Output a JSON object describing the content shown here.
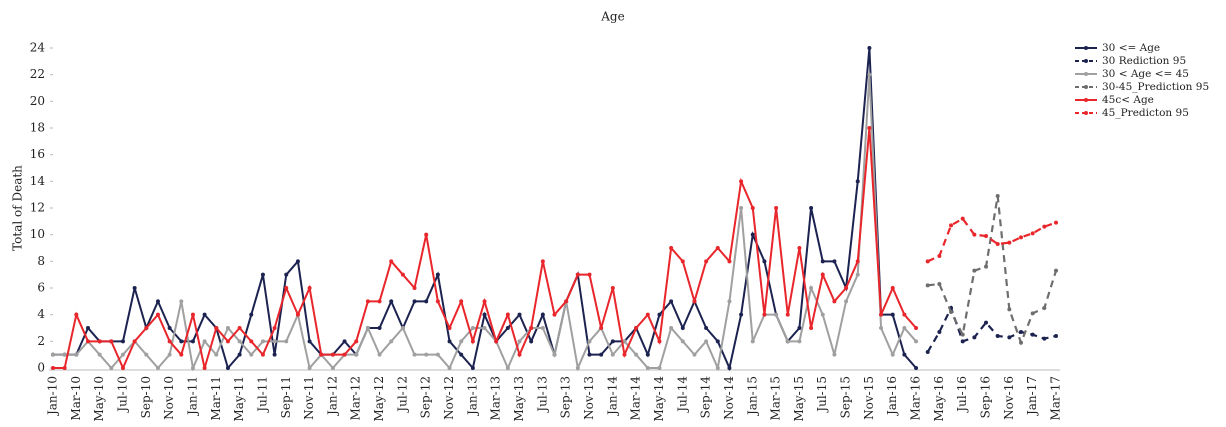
{
  "chart_data": {
    "type": "line",
    "title": "Age",
    "y_label": "Total of Death",
    "categories": [
      "Jan-10",
      null,
      "Mar-10",
      null,
      "May-10",
      null,
      "Jul-10",
      null,
      "Sep-10",
      null,
      "Nov-10",
      null,
      "Jan-11",
      null,
      "Mar-11",
      null,
      "May-11",
      null,
      "Jul-11",
      null,
      "Sep-11",
      null,
      "Nov-11",
      null,
      "Jan-12",
      null,
      "Mar-12",
      null,
      "May-12",
      null,
      "Jul-12",
      null,
      "Sep-12",
      null,
      "Nov-12",
      null,
      "Jan-13",
      null,
      "Mar-13",
      null,
      "May-13",
      null,
      "Jul-13",
      null,
      "Sep-13",
      null,
      "Nov-13",
      null,
      "Jan-14",
      null,
      "Mar-14",
      null,
      "May-14",
      null,
      "Jul-14",
      null,
      "Sep-14",
      null,
      "Nov-14",
      null,
      "Jan-15",
      null,
      "Mar-15",
      null,
      "May-15",
      null,
      "Jul-15",
      null,
      "Sep-15",
      null,
      "Nov-15",
      null,
      "Jan-16",
      null,
      "Mar-16",
      null,
      "May-16",
      null,
      "Jul-16",
      null,
      "Sep-16",
      null,
      "Nov-16",
      null,
      "Jan-17",
      null,
      "Mar-17"
    ],
    "ylim": [
      0,
      24
    ],
    "yticks": [
      0,
      2,
      4,
      6,
      8,
      10,
      12,
      14,
      16,
      18,
      20,
      22,
      24
    ],
    "grid": false,
    "legend": "right",
    "series": [
      {
        "name": "30 <= Age",
        "color": "#1c2350",
        "dashed": false,
        "values": [
          1,
          1,
          1,
          3,
          2,
          2,
          2,
          6,
          3,
          5,
          3,
          2,
          2,
          4,
          3,
          0,
          1,
          4,
          7,
          1,
          7,
          8,
          2,
          1,
          1,
          2,
          1,
          3,
          3,
          5,
          3,
          5,
          5,
          7,
          2,
          1,
          0,
          4,
          2,
          3,
          4,
          2,
          4,
          1,
          5,
          7,
          1,
          1,
          2,
          2,
          3,
          1,
          4,
          5,
          3,
          5,
          3,
          2,
          0,
          4,
          10,
          8,
          4,
          2,
          3,
          12,
          8,
          8,
          6,
          14,
          24,
          4,
          4,
          1,
          0,
          null,
          null,
          null,
          null,
          null,
          null,
          null,
          null,
          null,
          null,
          null,
          null
        ]
      },
      {
        "name": "30 Rediction 95",
        "color": "#1c2350",
        "dashed": true,
        "values": [
          null,
          null,
          null,
          null,
          null,
          null,
          null,
          null,
          null,
          null,
          null,
          null,
          null,
          null,
          null,
          null,
          null,
          null,
          null,
          null,
          null,
          null,
          null,
          null,
          null,
          null,
          null,
          null,
          null,
          null,
          null,
          null,
          null,
          null,
          null,
          null,
          null,
          null,
          null,
          null,
          null,
          null,
          null,
          null,
          null,
          null,
          null,
          null,
          null,
          null,
          null,
          null,
          null,
          null,
          null,
          null,
          null,
          null,
          null,
          null,
          null,
          null,
          null,
          null,
          null,
          null,
          null,
          null,
          null,
          null,
          null,
          null,
          null,
          null,
          null,
          1.2,
          2.7,
          4.5,
          2.0,
          2.3,
          3.4,
          2.4,
          2.3,
          2.7,
          2.5,
          2.2,
          2.4
        ]
      },
      {
        "name": "30 < Age <= 45",
        "color": "#a0a0a0",
        "dashed": false,
        "values": [
          1,
          1,
          1,
          2,
          1,
          0,
          1,
          2,
          1,
          0,
          1,
          5,
          0,
          2,
          1,
          3,
          2,
          1,
          2,
          2,
          2,
          4,
          0,
          1,
          0,
          1,
          1,
          3,
          1,
          2,
          3,
          1,
          1,
          1,
          0,
          2,
          3,
          3,
          2,
          0,
          2,
          3,
          3,
          1,
          5,
          0,
          2,
          3,
          1,
          2,
          1,
          0,
          0,
          3,
          2,
          1,
          2,
          0,
          5,
          12,
          2,
          4,
          4,
          2,
          2,
          6,
          4,
          1,
          5,
          7,
          22,
          3,
          1,
          3,
          2,
          null,
          null,
          null,
          null,
          null,
          null,
          null,
          null,
          null,
          null,
          null,
          null
        ]
      },
      {
        "name": "30-45_Prediction 95",
        "color": "#6e6e6e",
        "dashed": true,
        "values": [
          null,
          null,
          null,
          null,
          null,
          null,
          null,
          null,
          null,
          null,
          null,
          null,
          null,
          null,
          null,
          null,
          null,
          null,
          null,
          null,
          null,
          null,
          null,
          null,
          null,
          null,
          null,
          null,
          null,
          null,
          null,
          null,
          null,
          null,
          null,
          null,
          null,
          null,
          null,
          null,
          null,
          null,
          null,
          null,
          null,
          null,
          null,
          null,
          null,
          null,
          null,
          null,
          null,
          null,
          null,
          null,
          null,
          null,
          null,
          null,
          null,
          null,
          null,
          null,
          null,
          null,
          null,
          null,
          null,
          null,
          null,
          null,
          null,
          null,
          null,
          6.2,
          6.3,
          4.2,
          2.5,
          7.3,
          7.6,
          12.9,
          4.4,
          1.9,
          4.1,
          4.5,
          7.3
        ]
      },
      {
        "name": "45c< Age",
        "color": "#e8262b",
        "dashed": false,
        "values": [
          0,
          0,
          4,
          2,
          2,
          2,
          0,
          2,
          3,
          4,
          2,
          1,
          4,
          0,
          3,
          2,
          3,
          2,
          1,
          3,
          6,
          4,
          6,
          1,
          1,
          1,
          2,
          5,
          5,
          8,
          7,
          6,
          10,
          5,
          3,
          5,
          2,
          5,
          2,
          4,
          1,
          3,
          8,
          4,
          5,
          7,
          7,
          3,
          6,
          1,
          3,
          4,
          2,
          9,
          8,
          5,
          8,
          9,
          8,
          14,
          12,
          4,
          12,
          4,
          9,
          3,
          7,
          5,
          6,
          8,
          18,
          4,
          6,
          4,
          3,
          null,
          null,
          null,
          null,
          null,
          null,
          null,
          null,
          null,
          null,
          null,
          null
        ]
      },
      {
        "name": "45_Predicton 95",
        "color": "#e8262b",
        "dashed": true,
        "values": [
          null,
          null,
          null,
          null,
          null,
          null,
          null,
          null,
          null,
          null,
          null,
          null,
          null,
          null,
          null,
          null,
          null,
          null,
          null,
          null,
          null,
          null,
          null,
          null,
          null,
          null,
          null,
          null,
          null,
          null,
          null,
          null,
          null,
          null,
          null,
          null,
          null,
          null,
          null,
          null,
          null,
          null,
          null,
          null,
          null,
          null,
          null,
          null,
          null,
          null,
          null,
          null,
          null,
          null,
          null,
          null,
          null,
          null,
          null,
          null,
          null,
          null,
          null,
          null,
          null,
          null,
          null,
          null,
          null,
          null,
          null,
          null,
          null,
          null,
          null,
          8.0,
          8.4,
          10.7,
          11.2,
          10.0,
          9.9,
          9.3,
          9.4,
          9.8,
          10.1,
          10.6,
          10.9
        ]
      }
    ]
  }
}
